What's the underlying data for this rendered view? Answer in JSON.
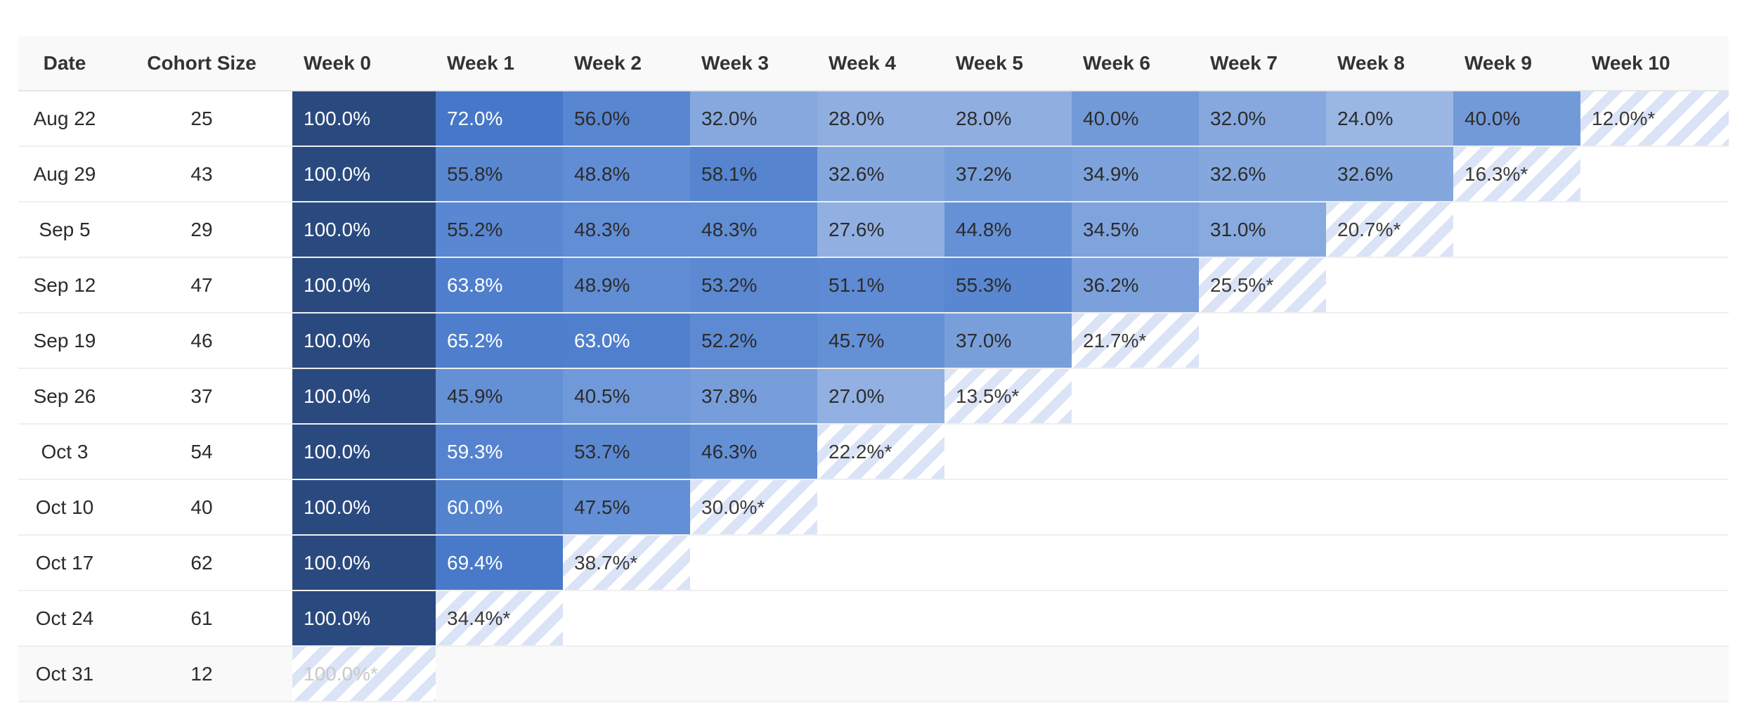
{
  "columns": [
    "Date",
    "Cohort Size",
    "Week 0",
    "Week 1",
    "Week 2",
    "Week 3",
    "Week 4",
    "Week 5",
    "Week 6",
    "Week 7",
    "Week 8",
    "Week 9",
    "Week 10"
  ],
  "rows": [
    {
      "date": "Aug 22",
      "size": "25",
      "cells": [
        "100.0%",
        "72.0%",
        "56.0%",
        "32.0%",
        "28.0%",
        "28.0%",
        "40.0%",
        "32.0%",
        "24.0%",
        "40.0%",
        "12.0%*"
      ]
    },
    {
      "date": "Aug 29",
      "size": "43",
      "cells": [
        "100.0%",
        "55.8%",
        "48.8%",
        "58.1%",
        "32.6%",
        "37.2%",
        "34.9%",
        "32.6%",
        "32.6%",
        "16.3%*"
      ]
    },
    {
      "date": "Sep 5",
      "size": "29",
      "cells": [
        "100.0%",
        "55.2%",
        "48.3%",
        "48.3%",
        "27.6%",
        "44.8%",
        "34.5%",
        "31.0%",
        "20.7%*"
      ]
    },
    {
      "date": "Sep 12",
      "size": "47",
      "cells": [
        "100.0%",
        "63.8%",
        "48.9%",
        "53.2%",
        "51.1%",
        "55.3%",
        "36.2%",
        "25.5%*"
      ]
    },
    {
      "date": "Sep 19",
      "size": "46",
      "cells": [
        "100.0%",
        "65.2%",
        "63.0%",
        "52.2%",
        "45.7%",
        "37.0%",
        "21.7%*"
      ]
    },
    {
      "date": "Sep 26",
      "size": "37",
      "cells": [
        "100.0%",
        "45.9%",
        "40.5%",
        "37.8%",
        "27.0%",
        "13.5%*"
      ]
    },
    {
      "date": "Oct 3",
      "size": "54",
      "cells": [
        "100.0%",
        "59.3%",
        "53.7%",
        "46.3%",
        "22.2%*"
      ]
    },
    {
      "date": "Oct 10",
      "size": "40",
      "cells": [
        "100.0%",
        "60.0%",
        "47.5%",
        "30.0%*"
      ]
    },
    {
      "date": "Oct 17",
      "size": "62",
      "cells": [
        "100.0%",
        "69.4%",
        "38.7%*"
      ]
    },
    {
      "date": "Oct 24",
      "size": "61",
      "cells": [
        "100.0%",
        "34.4%*"
      ]
    },
    {
      "date": "Oct 31",
      "size": "12",
      "cells": [
        "100.0%*"
      ]
    }
  ],
  "colors": {
    "full_retention": "#2a4a7f",
    "high": "#4677c8",
    "mid": "#6591d6",
    "low": "#a4bde6",
    "partial_stripe": "#d7e1f5",
    "header_bg": "#f9f9f9"
  }
}
